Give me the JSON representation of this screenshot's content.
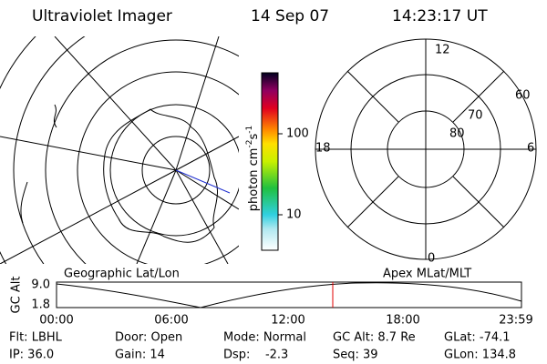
{
  "header": {
    "title": "Ultraviolet Imager",
    "date": "14 Sep 07",
    "time": "14:23:17 UT"
  },
  "colorbar": {
    "unit": "photon cm",
    "exp1": "-2",
    "unit2": "s",
    "exp2": "-1",
    "ticks": [
      "100",
      "10"
    ]
  },
  "polar": {
    "mlt_labels": [
      "12",
      "18",
      "6",
      "0"
    ],
    "lat_labels": [
      "60",
      "70",
      "80"
    ]
  },
  "altitude_plot": {
    "left_label": "Geographic Lat/Lon",
    "right_label": "Apex MLat/MLT",
    "ylabel": "GC Alt",
    "yticks": [
      "9.0",
      "1.8"
    ],
    "xticks": [
      "00:00",
      "06:00",
      "12:00",
      "18:00",
      "23:59"
    ]
  },
  "footer": {
    "rows": [
      [
        "Flt: LBHL",
        "Door: Open",
        "Mode: Normal",
        "GC Alt: 8.7 Re",
        "GLat: -74.1"
      ],
      [
        "IP: 36.0",
        "Gain: 14",
        "Dsp:    -2.3",
        "Seq: 39",
        "GLon: 134.8"
      ]
    ]
  }
}
